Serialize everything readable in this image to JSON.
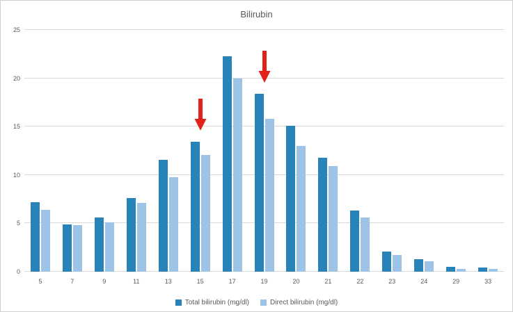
{
  "chart_data": {
    "type": "bar",
    "title": "Bilirubin",
    "categories": [
      "5",
      "7",
      "9",
      "11",
      "13",
      "15",
      "17",
      "19",
      "20",
      "21",
      "22",
      "23",
      "24",
      "29",
      "33"
    ],
    "series": [
      {
        "name": "Total bilirubin (mg/dl)",
        "color": "#2783b8",
        "values": [
          7.2,
          4.9,
          5.6,
          7.6,
          11.6,
          13.4,
          22.3,
          18.4,
          15.1,
          11.8,
          6.3,
          2.1,
          1.3,
          0.5,
          0.4
        ]
      },
      {
        "name": "Direct bilirubin (mg/dl)",
        "color": "#9dc3e6",
        "values": [
          6.4,
          4.8,
          5.1,
          7.1,
          9.8,
          12.1,
          20.0,
          15.8,
          13.0,
          10.9,
          5.6,
          1.7,
          1.1,
          0.3,
          0.3
        ]
      }
    ],
    "ylim": [
      0,
      25
    ],
    "ytick_step": 5,
    "grid": true,
    "legend_position": "bottom",
    "annotations": [
      {
        "category": "15",
        "type": "red-down-arrow"
      },
      {
        "category": "19",
        "type": "red-down-arrow"
      }
    ],
    "annotation_color": "#e32119"
  }
}
